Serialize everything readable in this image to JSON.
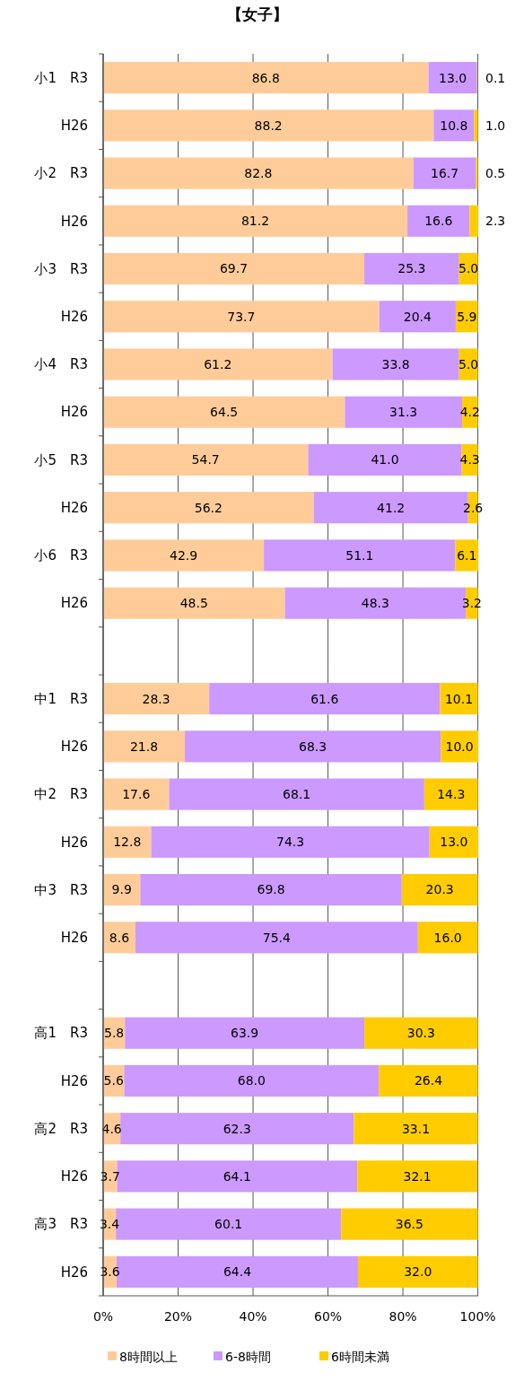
{
  "chart_data": {
    "type": "bar",
    "title": "【女子】",
    "orientation": "horizontal",
    "stacked": true,
    "categories": [
      "小1　R3",
      "H26",
      "小2　R3",
      "H26",
      "小3　R3",
      "H26",
      "小4　R3",
      "H26",
      "小5　R3",
      "H26",
      "小6　R3",
      "H26",
      null,
      "中1　R3",
      "H26",
      "中2　R3",
      "H26",
      "中3　R3",
      "H26",
      null,
      "高1　R3",
      "H26",
      "高2　R3",
      "H26",
      "高3　R3",
      "H26"
    ],
    "series": [
      {
        "name": "8時間以上",
        "color": "#ffcc99",
        "values": [
          86.8,
          88.2,
          82.8,
          81.2,
          69.7,
          73.7,
          61.2,
          64.5,
          54.7,
          56.2,
          42.9,
          48.5,
          null,
          28.3,
          21.8,
          17.6,
          12.8,
          9.9,
          8.6,
          null,
          5.8,
          5.6,
          4.6,
          3.7,
          3.4,
          3.6
        ],
        "value_labels": [
          "86.8",
          "88.2",
          "82.8",
          "81.2",
          "69.7",
          "73.7",
          "61.2",
          "64.5",
          "54.7",
          "56.2",
          "42.9",
          "48.5",
          null,
          "28.3",
          "21.8",
          "17.6",
          "12.8",
          "9.9",
          "8.6",
          null,
          "5.8",
          "5.6",
          "4.6",
          "3.7",
          "3.4",
          "3.6"
        ]
      },
      {
        "name": "6-8時間",
        "color": "#cc99ff",
        "values": [
          13.0,
          10.8,
          16.7,
          16.6,
          25.3,
          20.4,
          33.8,
          31.3,
          41.0,
          41.2,
          51.1,
          48.3,
          null,
          61.6,
          68.3,
          68.1,
          74.3,
          69.8,
          75.4,
          null,
          63.9,
          68.0,
          62.3,
          64.1,
          60.1,
          64.4
        ],
        "value_labels": [
          "13.0",
          "10.8",
          "16.7",
          "16.6",
          "25.3",
          "20.4",
          "33.8",
          "31.3",
          "41.0",
          "41.2",
          "51.1",
          "48.3",
          null,
          "61.6",
          "68.3",
          "68.1",
          "74.3",
          "69.8",
          "75.4",
          null,
          "63.9",
          "68.0",
          "62.3",
          "64.1",
          "60.1",
          "64.4"
        ]
      },
      {
        "name": "6時間未満",
        "color": "#ffcc00",
        "values": [
          0.1,
          1.0,
          0.5,
          2.3,
          5.0,
          5.9,
          5.0,
          4.2,
          4.3,
          2.6,
          6.1,
          3.2,
          null,
          10.1,
          10.0,
          14.3,
          13.0,
          20.3,
          16.0,
          null,
          30.3,
          26.4,
          33.1,
          32.1,
          36.5,
          32.0
        ],
        "value_labels": [
          "0.1",
          "1.0",
          "0.5",
          "2.3",
          "5.0",
          "5.9",
          "5.0",
          "4.2",
          "4.3",
          "2.6",
          "6.1",
          "3.2",
          null,
          "10.1",
          "10.0",
          "14.3",
          "13.0",
          "20.3",
          "16.0",
          null,
          "30.3",
          "26.4",
          "33.1",
          "32.1",
          "36.5",
          "32.0"
        ]
      }
    ],
    "xlim": [
      0,
      100.1
    ],
    "xticks": [
      {
        "value": 0,
        "label": "0%"
      },
      {
        "value": 20,
        "label": "20%"
      },
      {
        "value": 40,
        "label": "40%"
      },
      {
        "value": 60,
        "label": "60%"
      },
      {
        "value": 80,
        "label": "80%"
      },
      {
        "value": 100,
        "label": "100%"
      }
    ],
    "grid": "x",
    "legend": "bottom"
  }
}
